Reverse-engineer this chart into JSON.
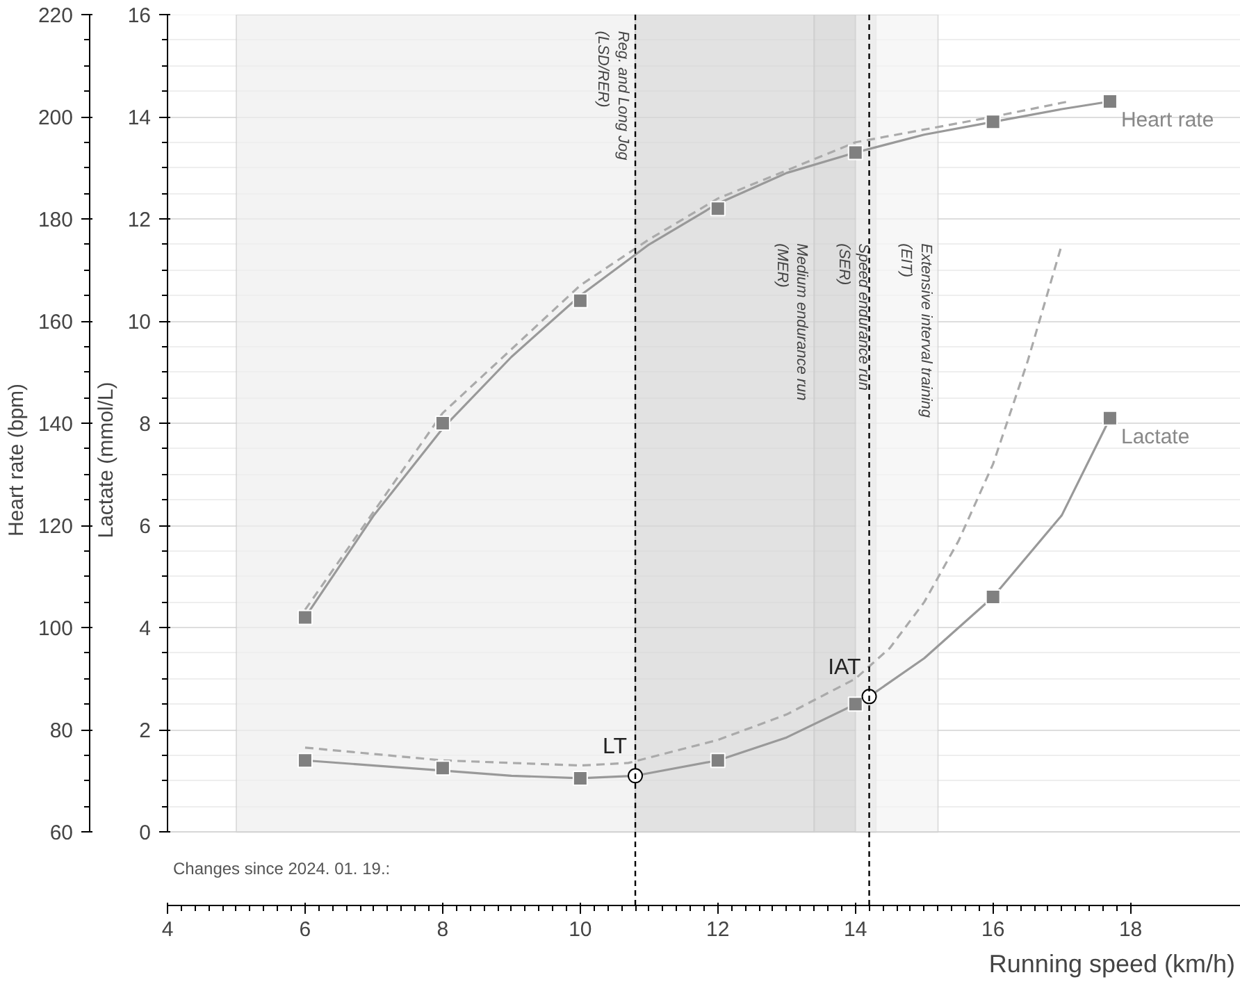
{
  "chart_data": {
    "type": "line",
    "xlabel": "Running speed (km/h)",
    "ylabel": "Heart rate (bpm)",
    "y2label": "Lactate (mmol/L)",
    "xlim": [
      4,
      19.6
    ],
    "xticks": [
      4,
      6,
      8,
      10,
      12,
      14,
      16,
      18
    ],
    "ylim": [
      60,
      220
    ],
    "yticks": [
      60,
      80,
      100,
      120,
      140,
      160,
      180,
      200,
      220
    ],
    "y2lim": [
      0,
      16
    ],
    "y2ticks": [
      0,
      2,
      4,
      6,
      8,
      10,
      12,
      14,
      16
    ],
    "grid": "y",
    "series": [
      {
        "color": "#aaaaaa",
        "line_style": "dashed",
        "x": [
          6,
          8,
          10,
          11,
          12,
          14,
          16,
          17.1
        ],
        "values": [
          103.5,
          142,
          167,
          176,
          184,
          195,
          200,
          203
        ]
      },
      {
        "color": "#999999",
        "line_style": "solid",
        "x": [
          6,
          7,
          8,
          9,
          10,
          11,
          12,
          13,
          14,
          15,
          16,
          17,
          17.7
        ],
        "values": [
          102,
          122,
          139,
          153,
          165,
          175,
          183,
          189,
          193,
          196.5,
          199,
          201.5,
          203
        ]
      },
      {
        "type": "scatter",
        "name": "Heart rate",
        "color": "#808080",
        "marker": "square",
        "x": [
          6,
          8,
          10,
          12,
          14,
          16,
          17.7
        ],
        "values": [
          102,
          140,
          164,
          182,
          193,
          199,
          203
        ]
      },
      {
        "axis": "y2",
        "color": "#aaaaaa",
        "line_style": "dashed",
        "x": [
          6,
          8,
          10,
          10.7,
          12,
          13,
          14,
          14.5,
          15,
          15.5,
          16,
          16.5,
          17
        ],
        "values": [
          1.65,
          1.4,
          1.3,
          1.35,
          1.8,
          2.3,
          3.0,
          3.6,
          4.5,
          5.7,
          7.2,
          9.2,
          11.5
        ]
      },
      {
        "axis": "y2",
        "color": "#999999",
        "line_style": "solid",
        "x": [
          6,
          7,
          8,
          9,
          10,
          10.8,
          12,
          13,
          14,
          14.2,
          15,
          16,
          17,
          17.7
        ],
        "values": [
          1.4,
          1.3,
          1.2,
          1.1,
          1.05,
          1.1,
          1.4,
          1.85,
          2.5,
          2.65,
          3.4,
          4.6,
          6.2,
          8.1
        ]
      },
      {
        "type": "scatter",
        "axis": "y2",
        "name": "Lactate",
        "color": "#808080",
        "marker": "square",
        "x": [
          6,
          8,
          10,
          12,
          14,
          16,
          17.7
        ],
        "values": [
          1.4,
          1.25,
          1.05,
          1.4,
          2.5,
          4.6,
          8.1
        ]
      }
    ],
    "bands": [
      {
        "axis": "x",
        "from": 5,
        "to": 10.8,
        "label": "Reg. and Long Jog (LSD/RER)",
        "color": "#eeeeee"
      },
      {
        "axis": "x",
        "from": 10.8,
        "to": 13.4,
        "label": "Medium endurance run (MER)",
        "color": "#d6d6d6"
      },
      {
        "axis": "x",
        "from": 13.4,
        "to": 14.3,
        "label": "Speed endurance run (SER)",
        "color": "#d0d0d0"
      },
      {
        "axis": "x",
        "from": 14.0,
        "to": 15.2,
        "label": "Extensive interval training (EIT)",
        "color": "#f4f4f4"
      }
    ],
    "ref_lines": [
      {
        "axis": "x",
        "value": 10.8,
        "color": "#000000",
        "line_style": "dashed"
      },
      {
        "axis": "x",
        "value": 14.2,
        "color": "#000000",
        "line_style": "dashed"
      }
    ],
    "annotations": [
      {
        "text": "LT",
        "x": 10.8,
        "y": 71
      },
      {
        "text": "IAT",
        "x": 14.2,
        "y": 86.5
      },
      "Changes since 2024. 01. 19.:"
    ]
  }
}
